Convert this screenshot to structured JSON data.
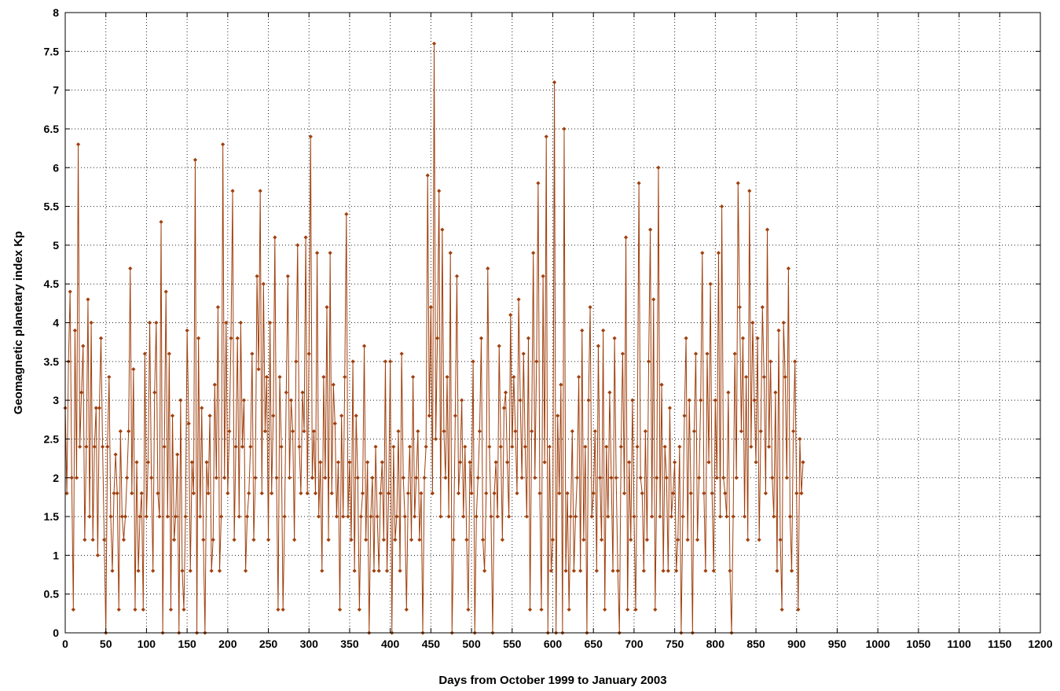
{
  "chart_data": {
    "type": "line",
    "title": "",
    "xlabel": "Days from  October 1999 to January 2003",
    "ylabel": "Geomagnetic planetary index Kp",
    "xlim": [
      0,
      1200
    ],
    "ylim": [
      0,
      8
    ],
    "x_ticks": [
      0,
      50,
      100,
      150,
      200,
      250,
      300,
      350,
      400,
      450,
      500,
      550,
      600,
      650,
      700,
      750,
      800,
      850,
      900,
      950,
      1000,
      1050,
      1100,
      1150,
      1200
    ],
    "y_ticks": [
      0,
      0.5,
      1,
      1.5,
      2,
      2.5,
      3,
      3.5,
      4,
      4.5,
      5,
      5.5,
      6,
      6.5,
      7,
      7.5,
      8
    ],
    "grid": true,
    "legend": "none",
    "series": [
      {
        "color": "#a0400e",
        "marker": "diamond",
        "x_start": 0,
        "x_step": 2,
        "values": [
          2.9,
          1.8,
          3.5,
          4.4,
          2.0,
          0.3,
          3.9,
          2.0,
          6.3,
          2.4,
          3.1,
          3.7,
          1.2,
          2.4,
          4.3,
          1.5,
          4.0,
          1.2,
          2.4,
          2.9,
          1.0,
          2.9,
          3.8,
          2.4,
          1.2,
          0.0,
          2.4,
          3.3,
          1.5,
          0.8,
          1.8,
          2.3,
          1.8,
          0.3,
          2.6,
          1.5,
          1.2,
          1.5,
          2.0,
          2.6,
          4.7,
          1.8,
          3.4,
          0.3,
          2.2,
          0.8,
          1.5,
          1.8,
          0.3,
          3.6,
          1.5,
          2.2,
          4.0,
          2.0,
          0.8,
          3.1,
          4.0,
          1.8,
          1.5,
          5.3,
          0.0,
          2.4,
          4.4,
          1.5,
          3.6,
          0.3,
          2.8,
          1.2,
          1.5,
          2.3,
          0.0,
          3.0,
          0.8,
          0.3,
          1.5,
          3.9,
          2.7,
          0.8,
          2.2,
          1.8,
          6.1,
          0.0,
          3.8,
          1.5,
          2.9,
          1.2,
          0.0,
          2.2,
          1.8,
          2.8,
          0.8,
          1.2,
          3.2,
          2.0,
          4.2,
          0.8,
          1.5,
          6.3,
          2.0,
          4.0,
          1.8,
          2.6,
          3.8,
          5.7,
          1.2,
          2.4,
          3.8,
          1.5,
          4.0,
          2.4,
          3.0,
          0.8,
          1.5,
          1.8,
          2.4,
          3.6,
          1.2,
          2.0,
          4.6,
          3.4,
          5.7,
          1.8,
          4.5,
          2.6,
          3.3,
          1.2,
          4.0,
          1.8,
          2.8,
          5.1,
          2.0,
          0.3,
          3.3,
          2.4,
          0.3,
          1.5,
          3.1,
          4.6,
          2.0,
          3.0,
          2.6,
          1.2,
          3.5,
          5.0,
          2.4,
          1.8,
          3.1,
          2.6,
          5.1,
          1.8,
          3.6,
          6.4,
          2.0,
          2.6,
          1.8,
          4.9,
          1.5,
          2.2,
          0.8,
          3.3,
          2.0,
          4.2,
          1.2,
          4.9,
          1.8,
          3.2,
          2.7,
          1.5,
          2.2,
          0.3,
          2.8,
          1.5,
          3.3,
          5.4,
          1.5,
          2.2,
          1.2,
          3.5,
          0.8,
          2.8,
          2.0,
          0.3,
          1.5,
          1.8,
          3.7,
          1.2,
          2.2,
          0.0,
          1.5,
          2.0,
          0.8,
          2.4,
          1.5,
          0.8,
          1.8,
          2.2,
          1.2,
          3.5,
          0.8,
          1.8,
          3.5,
          0.0,
          2.4,
          1.2,
          1.5,
          2.6,
          0.8,
          3.6,
          2.0,
          1.5,
          0.3,
          1.8,
          2.4,
          1.2,
          3.3,
          1.5,
          2.0,
          2.6,
          1.2,
          1.8,
          0.0,
          2.0,
          2.4,
          5.9,
          2.8,
          4.2,
          1.8,
          7.6,
          2.5,
          3.8,
          5.7,
          1.5,
          5.2,
          2.6,
          2.0,
          3.3,
          1.5,
          4.9,
          0.0,
          1.2,
          2.8,
          4.6,
          1.8,
          2.2,
          3.0,
          1.5,
          2.4,
          1.2,
          0.3,
          2.2,
          1.8,
          3.5,
          0.0,
          1.5,
          2.0,
          2.6,
          3.8,
          1.2,
          0.8,
          1.8,
          4.7,
          2.4,
          1.5,
          0.0,
          1.8,
          2.2,
          1.5,
          3.7,
          2.4,
          1.2,
          2.9,
          3.1,
          2.2,
          1.5,
          4.1,
          2.4,
          3.3,
          2.6,
          1.8,
          4.3,
          3.0,
          2.0,
          3.6,
          2.4,
          1.5,
          3.8,
          0.3,
          2.6,
          4.9,
          2.0,
          3.5,
          5.8,
          1.8,
          0.3,
          4.6,
          2.2,
          6.4,
          0.0,
          2.4,
          0.8,
          1.2,
          7.1,
          0.0,
          2.8,
          1.8,
          3.2,
          0.0,
          6.5,
          0.8,
          1.8,
          0.3,
          1.5,
          2.6,
          0.8,
          1.5,
          2.0,
          3.3,
          0.8,
          3.9,
          1.2,
          2.4,
          0.0,
          3.0,
          4.2,
          1.5,
          1.8,
          2.6,
          0.8,
          3.7,
          2.0,
          1.2,
          3.9,
          0.3,
          2.4,
          1.5,
          3.1,
          2.0,
          0.8,
          3.8,
          2.0,
          0.8,
          0.0,
          2.4,
          3.6,
          1.8,
          5.1,
          0.3,
          2.2,
          1.2,
          3.0,
          1.5,
          0.3,
          2.4,
          5.8,
          2.0,
          1.8,
          0.8,
          2.6,
          1.2,
          3.5,
          5.2,
          1.5,
          4.3,
          0.3,
          2.0,
          6.0,
          1.5,
          3.2,
          0.8,
          2.4,
          2.0,
          0.8,
          2.9,
          1.5,
          1.8,
          2.2,
          0.8,
          1.2,
          2.4,
          0.0,
          1.5,
          2.8,
          3.8,
          1.2,
          3.0,
          1.8,
          0.0,
          2.6,
          3.6,
          1.2,
          2.0,
          3.0,
          4.9,
          1.8,
          0.8,
          3.6,
          2.2,
          4.5,
          1.8,
          0.8,
          3.0,
          2.0,
          4.9,
          1.5,
          5.5,
          2.0,
          1.8,
          1.5,
          3.1,
          0.8,
          0.0,
          1.5,
          3.6,
          2.0,
          5.8,
          4.2,
          2.6,
          3.8,
          1.5,
          3.3,
          1.2,
          5.7,
          2.4,
          4.0,
          3.0,
          2.2,
          3.8,
          1.2,
          2.6,
          4.2,
          3.3,
          1.8,
          5.2,
          2.4,
          3.5,
          2.0,
          1.5,
          3.1,
          0.8,
          3.9,
          1.2,
          0.3,
          4.0,
          3.3,
          2.0,
          4.7,
          1.5,
          0.8,
          2.6,
          3.5,
          1.8,
          0.3,
          2.5,
          1.8,
          2.2
        ]
      }
    ]
  }
}
